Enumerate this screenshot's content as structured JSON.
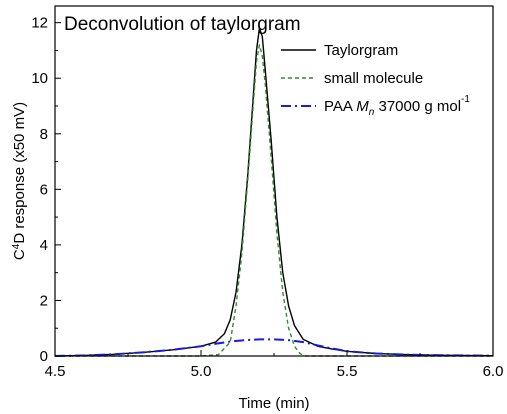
{
  "chart_data": {
    "type": "line",
    "title": "Deconvolution of taylorgram",
    "xlabel": "Time (min)",
    "ylabel_parts": {
      "c": "C",
      "sup": "4",
      "rest": "D response (x50 mV)"
    },
    "xlim": [
      4.5,
      6.0
    ],
    "ylim": [
      0,
      12.6
    ],
    "x_ticks": [
      4.5,
      5.0,
      5.5,
      6.0
    ],
    "x_tick_labels": [
      "4.5",
      "5.0",
      "5.5",
      "6.0"
    ],
    "y_ticks": [
      0,
      2,
      4,
      6,
      8,
      10,
      12
    ],
    "y_tick_labels": [
      "0",
      "2",
      "4",
      "6",
      "8",
      "10",
      "12"
    ],
    "grid": false,
    "legend_position": "top-right",
    "series": [
      {
        "name": "Taylorgram",
        "color": "#000000",
        "dash": "solid",
        "legend_parts": [
          {
            "t": "Taylorgram"
          }
        ],
        "points": [
          [
            4.5,
            0.0
          ],
          [
            4.6,
            0.02
          ],
          [
            4.7,
            0.06
          ],
          [
            4.8,
            0.13
          ],
          [
            4.9,
            0.22
          ],
          [
            5.0,
            0.35
          ],
          [
            5.05,
            0.5
          ],
          [
            5.08,
            0.8
          ],
          [
            5.1,
            1.3
          ],
          [
            5.12,
            2.3
          ],
          [
            5.14,
            4.0
          ],
          [
            5.16,
            6.5
          ],
          [
            5.18,
            9.5
          ],
          [
            5.19,
            11.0
          ],
          [
            5.2,
            11.8
          ],
          [
            5.21,
            11.5
          ],
          [
            5.22,
            10.3
          ],
          [
            5.24,
            7.8
          ],
          [
            5.26,
            5.0
          ],
          [
            5.28,
            3.0
          ],
          [
            5.3,
            1.8
          ],
          [
            5.32,
            1.1
          ],
          [
            5.35,
            0.6
          ],
          [
            5.4,
            0.35
          ],
          [
            5.45,
            0.25
          ],
          [
            5.5,
            0.17
          ],
          [
            5.6,
            0.09
          ],
          [
            5.7,
            0.05
          ],
          [
            5.8,
            0.03
          ],
          [
            6.0,
            0.01
          ]
        ]
      },
      {
        "name": "small molecule",
        "color": "#2e8b2e",
        "dash": "dashed",
        "legend_parts": [
          {
            "t": "small molecule"
          }
        ],
        "points": [
          [
            4.5,
            0.0
          ],
          [
            5.0,
            0.0
          ],
          [
            5.06,
            0.05
          ],
          [
            5.1,
            0.5
          ],
          [
            5.12,
            1.8
          ],
          [
            5.14,
            3.7
          ],
          [
            5.16,
            6.3
          ],
          [
            5.18,
            9.2
          ],
          [
            5.19,
            10.6
          ],
          [
            5.2,
            11.2
          ],
          [
            5.21,
            10.8
          ],
          [
            5.22,
            9.8
          ],
          [
            5.24,
            7.2
          ],
          [
            5.26,
            4.4
          ],
          [
            5.28,
            2.3
          ],
          [
            5.3,
            1.0
          ],
          [
            5.32,
            0.35
          ],
          [
            5.34,
            0.08
          ],
          [
            5.36,
            0.0
          ],
          [
            6.0,
            0.0
          ]
        ]
      },
      {
        "name": "PAA Mn 37000 g mol-1",
        "color": "#1a1adb",
        "dash": "dashdot",
        "legend_parts": [
          {
            "t": "PAA "
          },
          {
            "t": "M",
            "style": "italic"
          },
          {
            "t": "n",
            "style": "italic-sub"
          },
          {
            "t": " 37000 g mol"
          },
          {
            "t": "-1",
            "style": "sup"
          }
        ],
        "points": [
          [
            4.5,
            0.0
          ],
          [
            4.6,
            0.02
          ],
          [
            4.7,
            0.06
          ],
          [
            4.8,
            0.13
          ],
          [
            4.9,
            0.22
          ],
          [
            5.0,
            0.35
          ],
          [
            5.05,
            0.44
          ],
          [
            5.1,
            0.52
          ],
          [
            5.15,
            0.57
          ],
          [
            5.2,
            0.6
          ],
          [
            5.25,
            0.6
          ],
          [
            5.3,
            0.57
          ],
          [
            5.35,
            0.5
          ],
          [
            5.4,
            0.38
          ],
          [
            5.45,
            0.27
          ],
          [
            5.5,
            0.17
          ],
          [
            5.6,
            0.09
          ],
          [
            5.7,
            0.05
          ],
          [
            5.8,
            0.03
          ],
          [
            6.0,
            0.01
          ]
        ]
      }
    ]
  }
}
